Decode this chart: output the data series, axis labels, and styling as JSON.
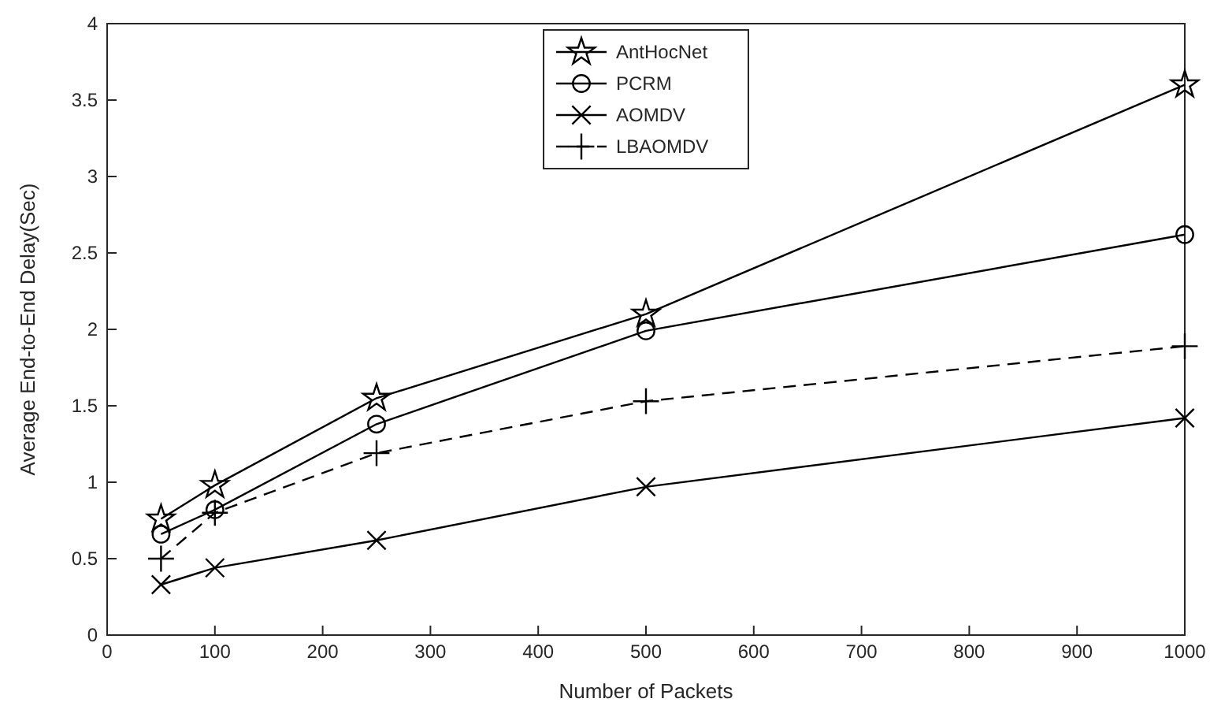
{
  "chart_data": {
    "type": "line",
    "xlabel": "Number of Packets",
    "ylabel": "Average End-to-End Delay(Sec)",
    "x": [
      50,
      100,
      250,
      500,
      1000
    ],
    "series": [
      {
        "name": "AntHocNet",
        "color": "#000000",
        "marker": "star",
        "line_style": "solid",
        "values": [
          0.76,
          0.98,
          1.55,
          2.1,
          3.6
        ]
      },
      {
        "name": "PCRM",
        "color": "#000000",
        "marker": "circle",
        "line_style": "solid",
        "values": [
          0.66,
          0.82,
          1.38,
          1.99,
          2.62
        ]
      },
      {
        "name": "AOMDV",
        "color": "#000000",
        "marker": "x",
        "line_style": "solid",
        "values": [
          0.33,
          0.44,
          0.62,
          0.97,
          1.42
        ]
      },
      {
        "name": "LBAOMDV",
        "color": "#000000",
        "marker": "cross",
        "line_style": "dashed",
        "values": [
          0.5,
          0.8,
          1.19,
          1.53,
          1.89
        ]
      }
    ],
    "xlim": [
      0,
      1000
    ],
    "xticks": [
      0,
      100,
      200,
      300,
      400,
      500,
      600,
      700,
      800,
      900,
      1000
    ],
    "ylim": [
      0,
      4
    ],
    "yticks": [
      0,
      0.5,
      1,
      1.5,
      2,
      2.5,
      3,
      3.5,
      4
    ],
    "grid": false,
    "legend": "top"
  }
}
